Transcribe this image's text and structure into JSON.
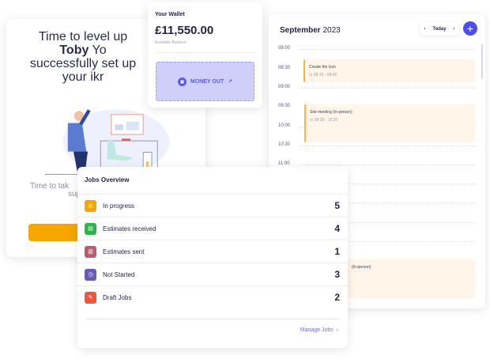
{
  "welcome": {
    "line1_pre": "Time to level up ",
    "line1_name": "Toby",
    "line1_post": " Yo",
    "line2": "successfully set up your ikr",
    "sub1": "Time to tak",
    "sub2": "sup"
  },
  "wallet": {
    "title": "Your Wallet",
    "amount": "£11,550.00",
    "balance_label": "Available Balance",
    "money_out": "MONEY OUT",
    "money_out_icon": "wallet-icon",
    "arrow": "↗"
  },
  "calendar": {
    "month": "September",
    "year": "2023",
    "today": "Today",
    "prev": "‹",
    "next": "›",
    "add": "+",
    "times": [
      "08:00",
      "08:30",
      "09:00",
      "09:30",
      "10:00",
      "10:30",
      "11:00"
    ],
    "events": [
      {
        "title": "Create the icon",
        "time": "08:15 - 08:45"
      },
      {
        "title": "Site meeting (In-person)",
        "time": "09:30 - 10:30"
      },
      {
        "title": "(In-person)",
        "time": ""
      }
    ]
  },
  "jobs": {
    "title": "Jobs Overview",
    "items": [
      {
        "label": "In progress",
        "count": "5",
        "color": "#f7a600",
        "icon": "target-icon"
      },
      {
        "label": "Estimates received",
        "count": "4",
        "color": "#2db34a",
        "icon": "document-icon"
      },
      {
        "label": "Estimates sent",
        "count": "1",
        "color": "#b85c6e",
        "icon": "sent-document-icon"
      },
      {
        "label": "Not Started",
        "count": "3",
        "color": "#6b5bb8",
        "icon": "clock-icon"
      },
      {
        "label": "Draft Jobs",
        "count": "2",
        "color": "#f2553a",
        "icon": "edit-icon"
      }
    ],
    "manage": "Manage Jobs",
    "manage_chevron": "›"
  }
}
